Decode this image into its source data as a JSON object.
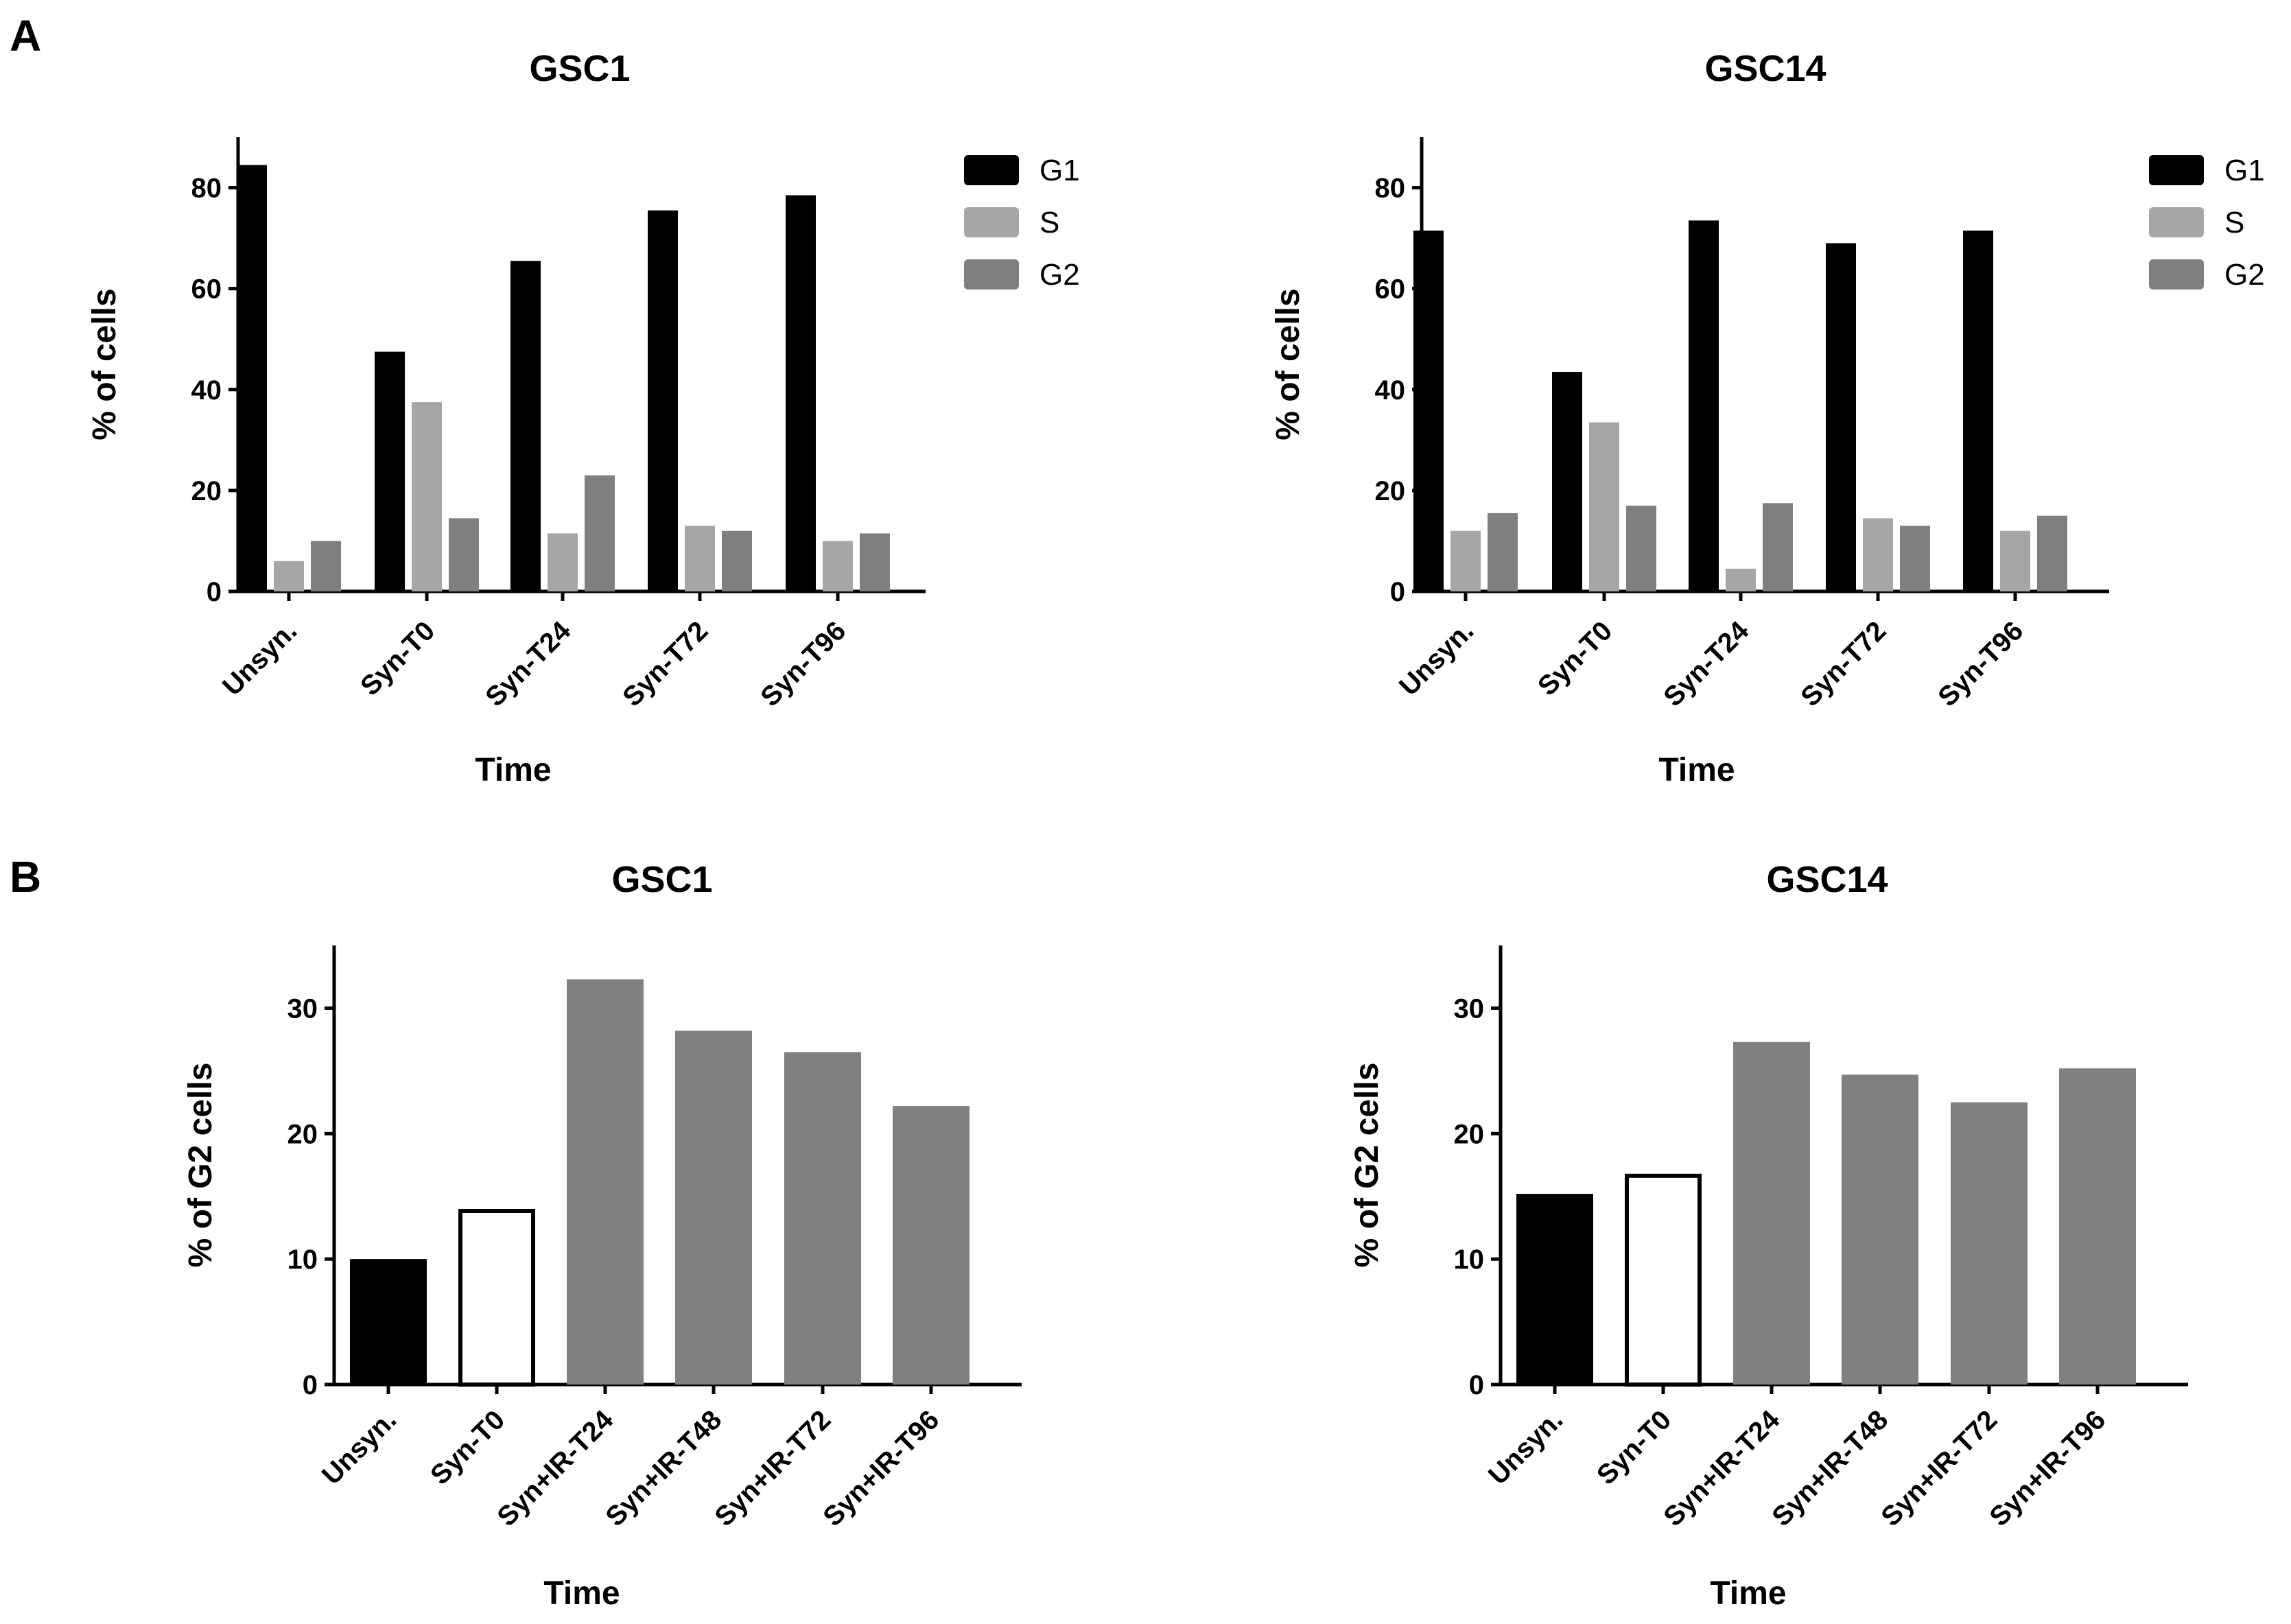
{
  "panels": {
    "a": "A",
    "b": "B"
  },
  "colors": {
    "G1": "#000000",
    "S": "#a6a6a8",
    "G2": "#7f7f7f",
    "unsyn": "#000000",
    "syn_t0_fill": "#ffffff",
    "syn_t0_stroke": "#000000",
    "irradiated": "#808080"
  },
  "chart_data": [
    {
      "type": "bar",
      "panel": "A",
      "title": "GSC1",
      "xlabel": "Time",
      "ylabel": "% of cells",
      "ylim": [
        0,
        90
      ],
      "yticks": [
        0,
        20,
        40,
        60,
        80
      ],
      "ytick_labels": [
        "0",
        "20",
        "40",
        "60",
        "80"
      ],
      "categories": [
        "Unsyn.",
        "Syn-T0",
        "Syn-T24",
        "Syn-T72",
        "Syn-T96"
      ],
      "series": [
        {
          "name": "G1",
          "values": [
            84.5,
            47.5,
            65.5,
            75.5,
            78.5
          ]
        },
        {
          "name": "S",
          "values": [
            6,
            37.5,
            11.5,
            13,
            10
          ]
        },
        {
          "name": "G2",
          "values": [
            10,
            14.5,
            23,
            12,
            11.5
          ]
        }
      ],
      "legend": "top-right"
    },
    {
      "type": "bar",
      "panel": "A",
      "title": "GSC14",
      "xlabel": "Time",
      "ylabel": "% of cells",
      "ylim": [
        0,
        90
      ],
      "yticks": [
        0,
        20,
        40,
        60,
        80
      ],
      "ytick_labels": [
        "0",
        "20",
        "40",
        "60",
        "80"
      ],
      "categories": [
        "Unsyn.",
        "Syn-T0",
        "Syn-T24",
        "Syn-T72",
        "Syn-T96"
      ],
      "series": [
        {
          "name": "G1",
          "values": [
            71.5,
            43.5,
            73.5,
            69,
            71.5
          ]
        },
        {
          "name": "S",
          "values": [
            12,
            33.5,
            4.5,
            14.5,
            12
          ]
        },
        {
          "name": "G2",
          "values": [
            15.5,
            17,
            17.5,
            13,
            15
          ]
        }
      ],
      "legend": "top-right"
    },
    {
      "type": "bar",
      "panel": "B",
      "title": "GSC1",
      "xlabel": "Time",
      "ylabel": "% of G2 cells",
      "ylim": [
        0,
        35
      ],
      "yticks": [
        0,
        10,
        20,
        30
      ],
      "ytick_labels": [
        "0",
        "10",
        "20",
        "30"
      ],
      "categories": [
        "Unsyn.",
        "Syn-T0",
        "Syn+IR-T24",
        "Syn+IR-T48",
        "Syn+IR-T72",
        "Syn+IR-T96"
      ],
      "values": [
        10,
        14,
        32.3,
        28.2,
        26.5,
        22.2
      ],
      "styles": [
        "unsyn",
        "open",
        "ir",
        "ir",
        "ir",
        "ir"
      ]
    },
    {
      "type": "bar",
      "panel": "B",
      "title": "GSC14",
      "xlabel": "Time",
      "ylabel": "% of G2 cells",
      "ylim": [
        0,
        35
      ],
      "yticks": [
        0,
        10,
        20,
        30
      ],
      "ytick_labels": [
        "0",
        "10",
        "20",
        "30"
      ],
      "categories": [
        "Unsyn.",
        "Syn-T0",
        "Syn+IR-T24",
        "Syn+IR-T48",
        "Syn+IR-T72",
        "Syn+IR-T96"
      ],
      "values": [
        15.2,
        16.8,
        27.3,
        24.7,
        22.5,
        25.2
      ],
      "styles": [
        "unsyn",
        "open",
        "ir",
        "ir",
        "ir",
        "ir"
      ]
    }
  ]
}
